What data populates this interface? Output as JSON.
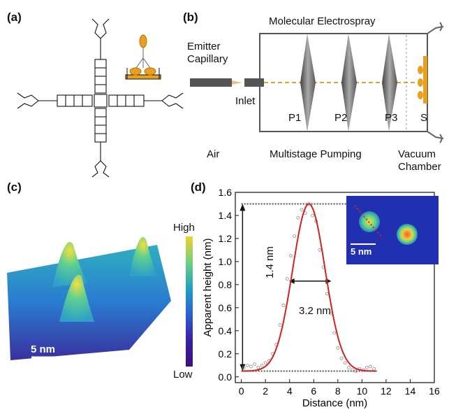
{
  "panels": {
    "a": {
      "label": "(a)"
    },
    "b": {
      "label": "(b)",
      "title": "Molecular Electrospray",
      "emitter": "Emitter",
      "capillary": "Capillary",
      "inlet": "Inlet",
      "stages": [
        "P1",
        "P2",
        "P3"
      ],
      "sample": "S",
      "air": "Air",
      "pumping": "Multistage Pumping",
      "vacuum": "Vacuum",
      "chamber": "Chamber"
    },
    "c": {
      "label": "(c)",
      "scale_high": "High",
      "scale_low": "Low",
      "scalebar": "5 nm"
    },
    "d": {
      "label": "(d)",
      "inset_scalebar": "5 nm",
      "height_annotation": "1.4 nm",
      "width_annotation": "3.2 nm"
    }
  },
  "colors": {
    "fit": "#d42020",
    "points": "#8a8a8a",
    "dashed_beam": "#e8a030",
    "molecule": "#e8a020"
  },
  "chart_data": {
    "type": "line",
    "xlabel": "Distance (nm)",
    "ylabel": "Apparent height (nm)",
    "xlim": [
      -0.5,
      16
    ],
    "ylim": [
      -0.05,
      1.6
    ],
    "xticks": [
      0,
      2,
      4,
      6,
      8,
      10,
      12,
      14,
      16
    ],
    "yticks": [
      0.0,
      0.2,
      0.4,
      0.6,
      0.8,
      1.0,
      1.2,
      1.4,
      1.6
    ],
    "fit": {
      "baseline": 0.05,
      "amplitude": 1.45,
      "center": 5.6,
      "sigma": 1.35
    },
    "points_x": [
      0.2,
      0.5,
      0.8,
      1.1,
      1.4,
      1.7,
      2.0,
      2.3,
      2.6,
      2.9,
      3.2,
      3.5,
      3.8,
      4.1,
      4.4,
      4.7,
      5.0,
      5.3,
      5.6,
      5.9,
      6.2,
      6.5,
      6.8,
      7.1,
      7.4,
      7.7,
      8.0,
      8.3,
      8.6,
      8.9,
      9.2,
      9.5,
      9.8,
      10.1,
      10.4,
      10.7,
      11.0
    ],
    "points_y": [
      0.08,
      0.1,
      0.09,
      0.11,
      0.08,
      0.1,
      0.12,
      0.14,
      0.2,
      0.28,
      0.45,
      0.62,
      0.85,
      1.05,
      1.22,
      1.38,
      1.45,
      1.42,
      1.5,
      1.4,
      1.35,
      1.1,
      0.95,
      0.72,
      0.55,
      0.38,
      0.25,
      0.16,
      0.12,
      0.08,
      0.06,
      0.05,
      0.07,
      0.06,
      0.08,
      0.09,
      0.07
    ],
    "reference_lines_y": [
      0.05,
      1.5
    ]
  }
}
